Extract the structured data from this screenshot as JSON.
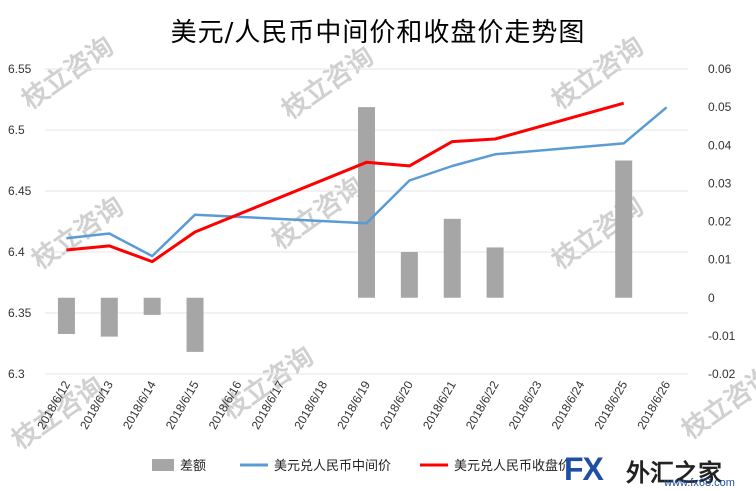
{
  "title": "美元/人民币中间价和收盘价走势图",
  "watermark": {
    "text": "枝立咨询"
  },
  "logo": {
    "brand": "FX",
    "name": "外汇之家",
    "url": "www.fx68.com"
  },
  "colors": {
    "bar": "#a6a6a6",
    "mid_line": "#5b9bd5",
    "close_line": "#ff0000",
    "grid": "#e6e6e6"
  },
  "chart_data": {
    "type": "bar+line",
    "title": "美元/人民币中间价和收盘价走势图",
    "categories": [
      "2018/6/12",
      "2018/6/13",
      "2018/6/14",
      "2018/6/15",
      "2018/6/16",
      "2018/6/17",
      "2018/6/18",
      "2018/6/19",
      "2018/6/20",
      "2018/6/21",
      "2018/6/22",
      "2018/6/23",
      "2018/6/24",
      "2018/6/25",
      "2018/6/26"
    ],
    "left_axis": {
      "ylim": [
        6.3,
        6.55
      ],
      "ticks": [
        "6.3",
        "6.35",
        "6.4",
        "6.45",
        "6.5",
        "6.55"
      ]
    },
    "right_axis": {
      "ylim": [
        -0.02,
        0.06
      ],
      "ticks": [
        "-0.02",
        "-0.01",
        "0",
        "0.01",
        "0.02",
        "0.03",
        "0.04",
        "0.05",
        "0.06"
      ]
    },
    "grid": true,
    "legend_position": "bottom",
    "series": [
      {
        "name": "差额",
        "kind": "bar",
        "axis": "right",
        "points": [
          [
            "2018/6/12",
            -0.0095
          ],
          [
            "2018/6/13",
            -0.0102
          ],
          [
            "2018/6/14",
            -0.0045
          ],
          [
            "2018/6/15",
            -0.0142
          ],
          [
            "2018/6/19",
            0.05
          ],
          [
            "2018/6/20",
            0.012
          ],
          [
            "2018/6/21",
            0.0207
          ],
          [
            "2018/6/22",
            0.0132
          ],
          [
            "2018/6/25",
            0.036
          ]
        ]
      },
      {
        "name": "美元兑人民币中间价",
        "kind": "line",
        "axis": "left",
        "points": [
          [
            "2018/6/12",
            6.4112
          ],
          [
            "2018/6/13",
            6.4152
          ],
          [
            "2018/6/14",
            6.3966
          ],
          [
            "2018/6/15",
            6.4306
          ],
          [
            "2018/6/19",
            6.4236
          ],
          [
            "2018/6/20",
            6.4586
          ],
          [
            "2018/6/21",
            6.4705
          ],
          [
            "2018/6/22",
            6.4801
          ],
          [
            "2018/6/25",
            6.489
          ],
          [
            "2018/6/26",
            6.5186
          ]
        ]
      },
      {
        "name": "美元兑人民币收盘价",
        "kind": "line",
        "axis": "left",
        "points": [
          [
            "2018/6/12",
            6.4016
          ],
          [
            "2018/6/13",
            6.405
          ],
          [
            "2018/6/14",
            6.3921
          ],
          [
            "2018/6/15",
            6.4164
          ],
          [
            "2018/6/19",
            6.4735
          ],
          [
            "2018/6/20",
            6.4706
          ],
          [
            "2018/6/21",
            6.4905
          ],
          [
            "2018/6/22",
            6.4926
          ],
          [
            "2018/6/25",
            6.522
          ]
        ]
      }
    ]
  }
}
